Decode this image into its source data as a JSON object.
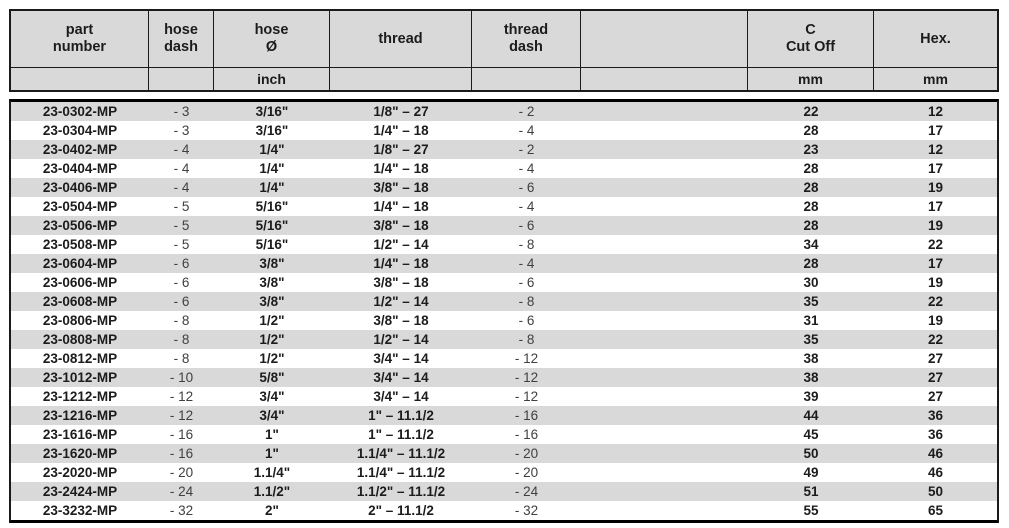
{
  "table": {
    "headers": [
      {
        "id": "part-number",
        "label": "part\nnumber",
        "unit": ""
      },
      {
        "id": "hose-dash",
        "label": "hose\ndash",
        "unit": ""
      },
      {
        "id": "hose-diameter",
        "label": "hose\nØ",
        "unit": "inch"
      },
      {
        "id": "thread",
        "label": "thread",
        "unit": ""
      },
      {
        "id": "thread-dash",
        "label": "thread\ndash",
        "unit": ""
      },
      {
        "id": "spacer",
        "label": "",
        "unit": ""
      },
      {
        "id": "c-cut-off",
        "label": "C\nCut Off",
        "unit": "mm"
      },
      {
        "id": "hex",
        "label": "Hex.",
        "unit": "mm"
      }
    ],
    "rows": [
      {
        "part_number": "23-0302-MP",
        "hose_dash": "- 3",
        "hose_diameter": "3/16\"",
        "thread": "1/8\" – 27",
        "thread_dash": "- 2",
        "spacer": "",
        "c_cut_off": "22",
        "hex": "12"
      },
      {
        "part_number": "23-0304-MP",
        "hose_dash": "- 3",
        "hose_diameter": "3/16\"",
        "thread": "1/4\" – 18",
        "thread_dash": "- 4",
        "spacer": "",
        "c_cut_off": "28",
        "hex": "17"
      },
      {
        "part_number": "23-0402-MP",
        "hose_dash": "- 4",
        "hose_diameter": "1/4\"",
        "thread": "1/8\" – 27",
        "thread_dash": "- 2",
        "spacer": "",
        "c_cut_off": "23",
        "hex": "12"
      },
      {
        "part_number": "23-0404-MP",
        "hose_dash": "- 4",
        "hose_diameter": "1/4\"",
        "thread": "1/4\" – 18",
        "thread_dash": "- 4",
        "spacer": "",
        "c_cut_off": "28",
        "hex": "17"
      },
      {
        "part_number": "23-0406-MP",
        "hose_dash": "- 4",
        "hose_diameter": "1/4\"",
        "thread": "3/8\" – 18",
        "thread_dash": "- 6",
        "spacer": "",
        "c_cut_off": "28",
        "hex": "19"
      },
      {
        "part_number": "23-0504-MP",
        "hose_dash": "- 5",
        "hose_diameter": "5/16\"",
        "thread": "1/4\" – 18",
        "thread_dash": "- 4",
        "spacer": "",
        "c_cut_off": "28",
        "hex": "17"
      },
      {
        "part_number": "23-0506-MP",
        "hose_dash": "- 5",
        "hose_diameter": "5/16\"",
        "thread": "3/8\" – 18",
        "thread_dash": "- 6",
        "spacer": "",
        "c_cut_off": "28",
        "hex": "19"
      },
      {
        "part_number": "23-0508-MP",
        "hose_dash": "- 5",
        "hose_diameter": "5/16\"",
        "thread": "1/2\" – 14",
        "thread_dash": "- 8",
        "spacer": "",
        "c_cut_off": "34",
        "hex": "22"
      },
      {
        "part_number": "23-0604-MP",
        "hose_dash": "- 6",
        "hose_diameter": "3/8\"",
        "thread": "1/4\" – 18",
        "thread_dash": "- 4",
        "spacer": "",
        "c_cut_off": "28",
        "hex": "17"
      },
      {
        "part_number": "23-0606-MP",
        "hose_dash": "- 6",
        "hose_diameter": "3/8\"",
        "thread": "3/8\" – 18",
        "thread_dash": "- 6",
        "spacer": "",
        "c_cut_off": "30",
        "hex": "19"
      },
      {
        "part_number": "23-0608-MP",
        "hose_dash": "- 6",
        "hose_diameter": "3/8\"",
        "thread": "1/2\" – 14",
        "thread_dash": "- 8",
        "spacer": "",
        "c_cut_off": "35",
        "hex": "22"
      },
      {
        "part_number": "23-0806-MP",
        "hose_dash": "- 8",
        "hose_diameter": "1/2\"",
        "thread": "3/8\" – 18",
        "thread_dash": "- 6",
        "spacer": "",
        "c_cut_off": "31",
        "hex": "19"
      },
      {
        "part_number": "23-0808-MP",
        "hose_dash": "- 8",
        "hose_diameter": "1/2\"",
        "thread": "1/2\" – 14",
        "thread_dash": "- 8",
        "spacer": "",
        "c_cut_off": "35",
        "hex": "22"
      },
      {
        "part_number": "23-0812-MP",
        "hose_dash": "- 8",
        "hose_diameter": "1/2\"",
        "thread": "3/4\" – 14",
        "thread_dash": "- 12",
        "spacer": "",
        "c_cut_off": "38",
        "hex": "27"
      },
      {
        "part_number": "23-1012-MP",
        "hose_dash": "- 10",
        "hose_diameter": "5/8\"",
        "thread": "3/4\" – 14",
        "thread_dash": "- 12",
        "spacer": "",
        "c_cut_off": "38",
        "hex": "27"
      },
      {
        "part_number": "23-1212-MP",
        "hose_dash": "- 12",
        "hose_diameter": "3/4\"",
        "thread": "3/4\" – 14",
        "thread_dash": "- 12",
        "spacer": "",
        "c_cut_off": "39",
        "hex": "27"
      },
      {
        "part_number": "23-1216-MP",
        "hose_dash": "- 12",
        "hose_diameter": "3/4\"",
        "thread": "1\" – 11.1/2",
        "thread_dash": "- 16",
        "spacer": "",
        "c_cut_off": "44",
        "hex": "36"
      },
      {
        "part_number": "23-1616-MP",
        "hose_dash": "- 16",
        "hose_diameter": "1\"",
        "thread": "1\" – 11.1/2",
        "thread_dash": "- 16",
        "spacer": "",
        "c_cut_off": "45",
        "hex": "36"
      },
      {
        "part_number": "23-1620-MP",
        "hose_dash": "- 16",
        "hose_diameter": "1\"",
        "thread": "1.1/4\" – 11.1/2",
        "thread_dash": "- 20",
        "spacer": "",
        "c_cut_off": "50",
        "hex": "46"
      },
      {
        "part_number": "23-2020-MP",
        "hose_dash": "- 20",
        "hose_diameter": "1.1/4\"",
        "thread": "1.1/4\" – 11.1/2",
        "thread_dash": "- 20",
        "spacer": "",
        "c_cut_off": "49",
        "hex": "46"
      },
      {
        "part_number": "23-2424-MP",
        "hose_dash": "- 24",
        "hose_diameter": "1.1/2\"",
        "thread": "1.1/2\" – 11.1/2",
        "thread_dash": "- 24",
        "spacer": "",
        "c_cut_off": "51",
        "hex": "50"
      },
      {
        "part_number": "23-3232-MP",
        "hose_dash": "- 32",
        "hose_diameter": "2\"",
        "thread": "2\" – 11.1/2",
        "thread_dash": "- 32",
        "spacer": "",
        "c_cut_off": "55",
        "hex": "65"
      }
    ]
  },
  "colors": {
    "stripe": "#d9d9d9",
    "header_bg": "#d9d9d9",
    "border": "#1a1a1a",
    "text": "#1c1c1c",
    "dash_text": "#404040"
  }
}
